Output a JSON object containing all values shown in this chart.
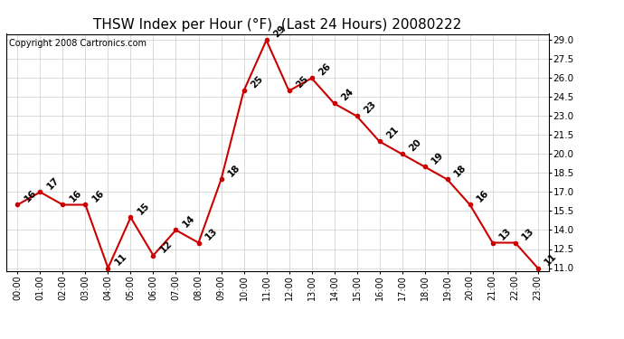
{
  "title": "THSW Index per Hour (°F)  (Last 24 Hours) 20080222",
  "copyright": "Copyright 2008 Cartronics.com",
  "hours": [
    "00:00",
    "01:00",
    "02:00",
    "03:00",
    "04:00",
    "05:00",
    "06:00",
    "07:00",
    "08:00",
    "09:00",
    "10:00",
    "11:00",
    "12:00",
    "13:00",
    "14:00",
    "15:00",
    "16:00",
    "17:00",
    "18:00",
    "19:00",
    "20:00",
    "21:00",
    "22:00",
    "23:00"
  ],
  "values": [
    16,
    17,
    16,
    16,
    11,
    15,
    12,
    14,
    13,
    18,
    25,
    29,
    25,
    26,
    24,
    23,
    21,
    20,
    19,
    18,
    16,
    13,
    13,
    11
  ],
  "line_color": "#cc0000",
  "marker_color": "#cc0000",
  "background_color": "#ffffff",
  "grid_color": "#cccccc",
  "ylim_min": 11.0,
  "ylim_max": 29.0,
  "ytick_step": 1.5,
  "title_fontsize": 11,
  "copyright_fontsize": 7,
  "label_fontsize": 7.5
}
